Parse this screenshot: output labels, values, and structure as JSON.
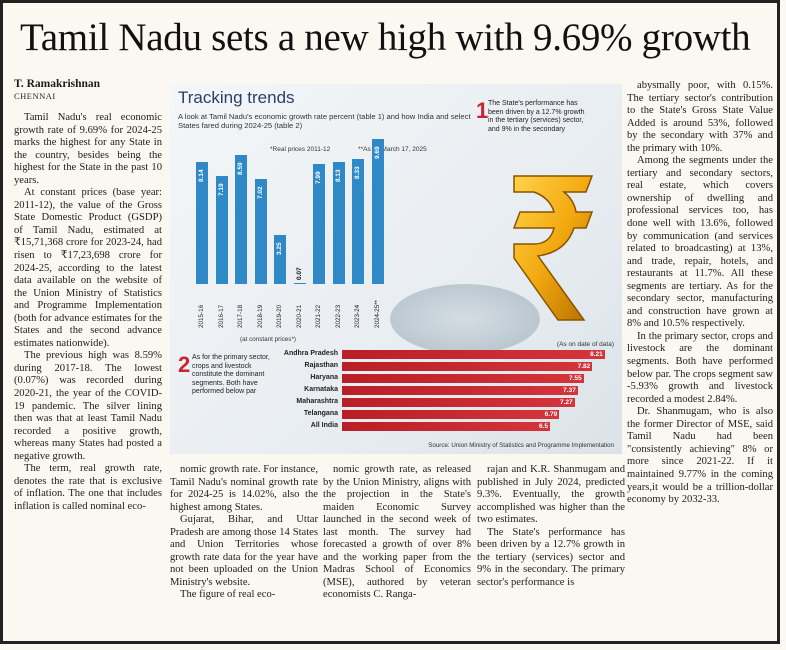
{
  "article": {
    "headline": "Tamil Nadu sets a new high with 9.69% growth",
    "byline": "T. Ramakrishnan",
    "city": "CHENNAI",
    "col1": [
      "Tamil Nadu's real economic growth rate of 9.69% for 2024-25 marks the highest for any State in the country, besides being the highest for the State in the past 10 years.",
      "At constant prices (base year: 2011-12), the value of the Gross State Domestic Product (GSDP) of Tamil Nadu, estimated at ₹15,71,368 crore for 2023-24, had risen to ₹17,23,698 crore for 2024-25, according to the latest data available on the website of the Union Ministry of Statistics and Programme Implementation (both for advance estimates for the States and the second advance estimates nationwide).",
      "The previous high was 8.59% during 2017-18. The lowest (0.07%) was recorded during 2020-21, the year of the COVID-19 pandemic. The silver lining then was that at least Tamil Nadu recorded a positive growth, whereas many States had posted a negative growth.",
      "The term, real growth rate, denotes the rate that is exclusive of inflation. The one that includes inflation is called nominal eco-"
    ],
    "col2": [
      "nomic growth rate. For instance, Tamil Nadu's nominal growth rate for 2024-25 is 14.02%, also the highest among States.",
      "Gujarat, Bihar, and Uttar Pradesh are among those 14 States and Union Territories whose growth rate data for the year have not been uploaded on the Union Ministry's website.",
      "The figure of real eco-"
    ],
    "col3": [
      "nomic growth rate, as released by the Union Ministry, aligns with the projection in the State's maiden Economic Survey launched in the second week of last month. The survey had forecasted a growth of over 8% and the working paper from the Madras School of Economics (MSE), authored by veteran economists C. Ranga-"
    ],
    "col4": [
      "rajan and K.R. Shanmugam and published in July 2024, predicted 9.3%. Eventually, the growth accomplished was higher than the two estimates.",
      "The State's performance has been driven by a 12.7% growth in the tertiary (services) sector and 9% in the secondary. The primary sector's performance is"
    ],
    "col5": [
      "abysmally poor, with 0.15%. The tertiary sector's contribution to the State's Gross State Value Added is around 53%, followed by the secondary with 37% and the primary with 10%.",
      "Among the segments under the tertiary and secondary sectors, real estate, which covers ownership of dwelling and professional services too, has done well with 13.6%, followed by communication (and services related to broadcasting) at 13%, and trade, repair, hotels, and restaurants at 11.7%. All these segments are tertiary. As for the secondary sector, manufacturing and construction have grown at 8% and 10.5% respectively.",
      "In the primary sector, crops and livestock are the dominant segments. Both have performed below par. The crops segment saw -5.93% growth and livestock recorded a modest 2.84%.",
      "Dr. Shanmugam, who is also the former Director of MSE, said Tamil Nadu had been \"consistently achieving\" 8% or more since 2021-22. If it maintained 9.77% in the coming years,it would be a trillion-dollar economy by 2032-33."
    ]
  },
  "graphic": {
    "title": "Tracking trends",
    "subtitle": "A look at Tamil Nadu's economic growth rate percent (table 1) and how India and select States fared during 2024-25 (table 2)",
    "note1": "*Real prices 2011-12",
    "note2": "**As on March 17, 2025",
    "chart1_caption": "(at constant prices*)",
    "callout1_num": "1",
    "callout1_text": "The State's performance has been driven by a 12.7% growth in the tertiary (services) sector, and 9% in the secondary",
    "callout2_num": "2",
    "callout2_text": "As for the primary sector, crops and livestock constitute the dominant segments. Both have performed below par",
    "chart2_title": "(As on date of data)",
    "source": "Source: Union Ministry of Statistics and Programme Implementation"
  },
  "chart_data": [
    {
      "type": "bar",
      "categories": [
        "2015-16",
        "2016-17",
        "2017-18",
        "2018-19",
        "2019-20",
        "2020-21",
        "2021-22",
        "2022-23",
        "2023-24",
        "2024-25**"
      ],
      "values": [
        8.14,
        7.19,
        8.59,
        7.02,
        3.25,
        0.07,
        7.99,
        8.13,
        8.33,
        9.69
      ],
      "value_labels": [
        "8.14",
        "7.19",
        "8.59",
        "7.02",
        "3.25",
        "0.07",
        "7.99",
        "8.13",
        "8.33",
        "9.69"
      ],
      "ylim": [
        0,
        10
      ]
    },
    {
      "type": "bar",
      "orientation": "horizontal",
      "categories": [
        "Andhra Pradesh",
        "Rajasthan",
        "Haryana",
        "Karnataka",
        "Maharashtra",
        "Telangana",
        "All India"
      ],
      "values": [
        8.21,
        7.82,
        7.55,
        7.37,
        7.27,
        6.79,
        6.5
      ],
      "value_labels": [
        "8.21",
        "7.82",
        "7.55",
        "7.37",
        "7.27",
        "6.79",
        "6.5"
      ],
      "xlim": [
        0,
        8.5
      ]
    }
  ],
  "colors": {
    "bar_blue": "#2f89c7",
    "bar_red": "#c8262f",
    "rupee_gold": "#f2a90f"
  }
}
